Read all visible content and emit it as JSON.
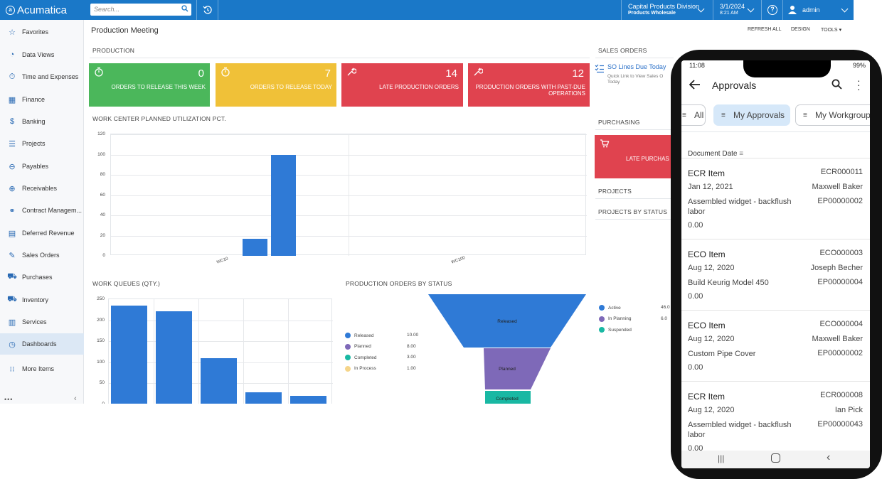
{
  "app": {
    "logo": "Acumatica",
    "search_placeholder": "Search..."
  },
  "topbar": {
    "branch": "Capital Products Division",
    "branch_sub": "Products Wholesale",
    "date": "3/1/2024",
    "time": "8:21 AM",
    "help": "?",
    "user": "admin"
  },
  "sidebar": {
    "items": [
      {
        "label": "Favorites",
        "icon": "star-icon"
      },
      {
        "label": "Data Views",
        "icon": "pie-icon"
      },
      {
        "label": "Time and Expenses",
        "icon": "stopwatch-icon"
      },
      {
        "label": "Finance",
        "icon": "calculator-icon"
      },
      {
        "label": "Banking",
        "icon": "dollar-icon"
      },
      {
        "label": "Projects",
        "icon": "projects-icon"
      },
      {
        "label": "Payables",
        "icon": "minus-circle-icon"
      },
      {
        "label": "Receivables",
        "icon": "plus-circle-icon"
      },
      {
        "label": "Contract Managem...",
        "icon": "handshake-icon"
      },
      {
        "label": "Deferred Revenue",
        "icon": "deferred-icon"
      },
      {
        "label": "Sales Orders",
        "icon": "edit-icon"
      },
      {
        "label": "Purchases",
        "icon": "cart-icon"
      },
      {
        "label": "Inventory",
        "icon": "truck-icon"
      },
      {
        "label": "Services",
        "icon": "services-icon"
      },
      {
        "label": "Dashboards",
        "icon": "dashboard-icon"
      },
      {
        "label": "More Items",
        "icon": "grid-icon"
      }
    ],
    "more": "•••",
    "collapse": "‹"
  },
  "main": {
    "title": "Production Meeting",
    "refresh": "REFRESH ALL",
    "design": "DESIGN",
    "tools": "TOOLS",
    "production_title": "PRODUCTION",
    "sales_title": "SALES ORDERS",
    "purchasing_title": "PURCHASING",
    "projects_title": "PROJECTS",
    "projects_status_title": "PROJECTS BY STATUS",
    "tiles": [
      {
        "num": "0",
        "label": "ORDERS TO RELEASE THIS WEEK",
        "color": "#4bb75b",
        "icon": "stopwatch-icon"
      },
      {
        "num": "7",
        "label": "ORDERS TO RELEASE TODAY",
        "color": "#f0c138",
        "icon": "stopwatch-icon"
      },
      {
        "num": "14",
        "label": "LATE PRODUCTION ORDERS",
        "color": "#e0434f",
        "icon": "wrench-icon"
      },
      {
        "num": "12",
        "label": "PRODUCTION ORDERS WITH PAST-DUE OPERATIONS",
        "color": "#e0434f",
        "icon": "wrench-icon"
      }
    ],
    "sales_link": "SO Lines Due Today",
    "sales_sub_1": "Quick Link to View Sales O",
    "sales_sub_2": "Today",
    "purchase_tile": "LATE PURCHAS",
    "work_center_title": "WORK CENTER PLANNED UTILIZATION PCT.",
    "work_queues_title": "WORK QUEUES (QTY.)",
    "prod_status_title": "PRODUCTION ORDERS BY STATUS"
  },
  "chart_data": [
    {
      "type": "bar",
      "title": "WORK CENTER PLANNED UTILIZATION PCT.",
      "categories": [
        "WC10",
        "WC100"
      ],
      "series": [
        {
          "values": [
            17,
            100
          ]
        }
      ],
      "yticks": [
        "120",
        "100",
        "80",
        "60",
        "40",
        "20",
        "0"
      ],
      "ylim": [
        0,
        120
      ]
    },
    {
      "type": "bar",
      "title": "WORK QUEUES (QTY.)",
      "values": [
        235,
        222,
        109,
        28,
        21
      ],
      "yticks": [
        "250",
        "200",
        "150",
        "100",
        "50",
        "0"
      ],
      "ylim": [
        0,
        250
      ]
    },
    {
      "type": "funnel",
      "title": "PRODUCTION ORDERS BY STATUS",
      "series": [
        {
          "name": "Released",
          "value": "10.00",
          "color": "#2f7ad6"
        },
        {
          "name": "Planned",
          "value": "8.00",
          "color": "#7e69b8"
        },
        {
          "name": "Completed",
          "value": "3.00",
          "color": "#19b8a3"
        },
        {
          "name": "In Process",
          "value": "1.00",
          "color": "#f5d58a"
        }
      ]
    },
    {
      "type": "pie",
      "title": "PROJECTS BY STATUS",
      "series": [
        {
          "name": "Active",
          "value": "46.0",
          "color": "#2f7ad6"
        },
        {
          "name": "In Planning",
          "value": "6.0",
          "color": "#7e69b8"
        },
        {
          "name": "Suspended",
          "value": "",
          "color": "#19b8a3"
        }
      ]
    }
  ],
  "phone": {
    "time": "11:08",
    "battery": "99%",
    "title": "Approvals",
    "filters": [
      "All",
      "My Approvals",
      "My Workgroup"
    ],
    "sort_label": "Document Date",
    "cards": [
      {
        "type": "ECR Item",
        "code": "ECR000011",
        "date": "Jan 12, 2021",
        "person": "Maxwell Baker",
        "desc": "Assembled widget - backflush labor",
        "ep": "EP00000002",
        "amount": "0.00"
      },
      {
        "type": "ECO Item",
        "code": "ECO000003",
        "date": "Aug 12, 2020",
        "person": "Joseph Becher",
        "desc": "Build Keurig Model 450",
        "ep": "EP00000004",
        "amount": "0.00"
      },
      {
        "type": "ECO Item",
        "code": "ECO000004",
        "date": "Aug 12, 2020",
        "person": "Maxwell Baker",
        "desc": "Custom Pipe Cover",
        "ep": "EP00000002",
        "amount": "0.00"
      },
      {
        "type": "ECR Item",
        "code": "ECR000008",
        "date": "Aug 12, 2020",
        "person": "Ian Pick",
        "desc": "Assembled widget - backflush labor",
        "ep": "EP00000043",
        "amount": "0.00"
      }
    ]
  }
}
